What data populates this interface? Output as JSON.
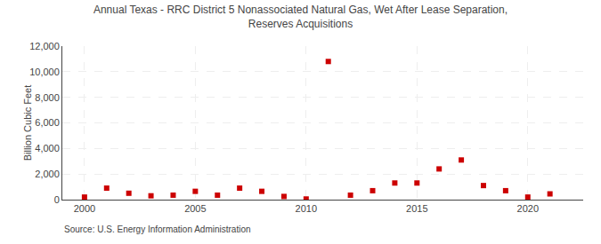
{
  "chart_data": {
    "type": "scatter",
    "title": "Annual Texas - RRC District 5 Nonassociated Natural Gas, Wet After Lease Separation,\nReserves Acquisitions",
    "ylabel": "Billion Cubic Feet",
    "annotations": [
      "Source: U.S. Energy Information Administration"
    ],
    "x": [
      2000,
      2001,
      2002,
      2003,
      2004,
      2005,
      2006,
      2007,
      2008,
      2009,
      2010,
      2011,
      2012,
      2013,
      2014,
      2015,
      2016,
      2017,
      2018,
      2019,
      2020,
      2021
    ],
    "values": [
      200,
      900,
      500,
      300,
      350,
      650,
      350,
      900,
      650,
      250,
      50,
      10800,
      350,
      700,
      1300,
      1300,
      2400,
      3100,
      1100,
      700,
      200,
      450
    ],
    "color": "#cc0000",
    "marker": "square",
    "xlim": [
      1999.0,
      2022.5
    ],
    "xticks": [
      2000,
      2005,
      2010,
      2015,
      2020
    ],
    "ylim": [
      0,
      12000
    ],
    "yticks": [
      0,
      {
        "value": 2000,
        "label": "2,000"
      },
      {
        "value": 4000,
        "label": "4,000"
      },
      {
        "value": 6000,
        "label": "6,000"
      },
      {
        "value": 8000,
        "label": "8,000"
      },
      {
        "value": 10000,
        "label": "10,000"
      },
      {
        "value": 12000,
        "label": "12,000"
      }
    ],
    "grid": true
  }
}
